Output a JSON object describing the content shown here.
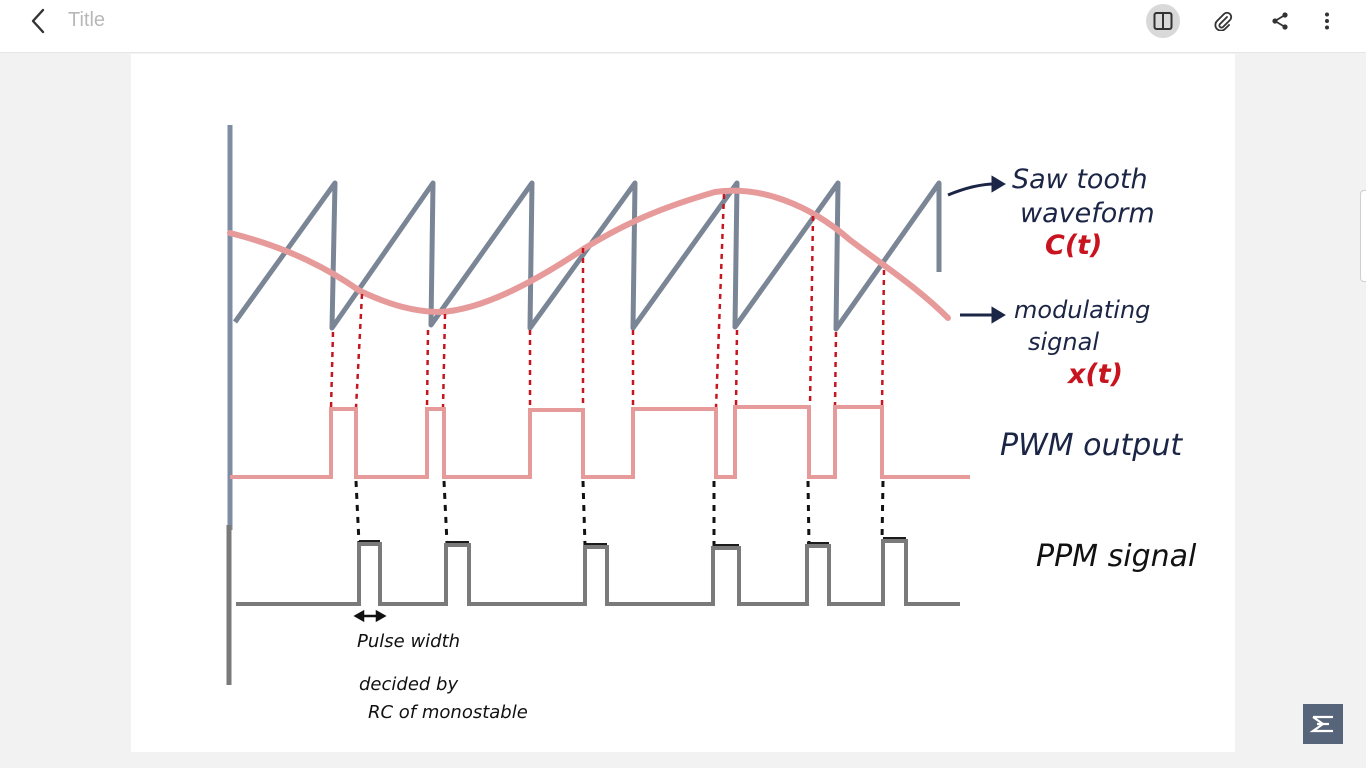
{
  "header": {
    "title": "Title",
    "icons": [
      "back-chevron-icon",
      "book-icon",
      "paperclip-icon",
      "share-icon",
      "more-vert-icon"
    ]
  },
  "diagram": {
    "labels": {
      "sawtooth_line1": "Saw tooth",
      "sawtooth_line2": "waveform",
      "sawtooth_symbol": "C(t)",
      "modulating_line1": "modulating",
      "modulating_line2": "signal",
      "modulating_symbol": "x(t)",
      "pwm": "PWM output",
      "ppm": "PPM signal",
      "pulse_width_line1": "Pulse width",
      "pulse_width_line2": "decided by",
      "pulse_width_line3": "RC of monostable"
    },
    "colors": {
      "sawtooth": "#4e5d73",
      "modulating": "#e79a9a",
      "pwm": "#e79a9a",
      "ppm": "#7a7a7a",
      "red_text": "#c8141e",
      "navy_text": "#1b2545"
    }
  }
}
